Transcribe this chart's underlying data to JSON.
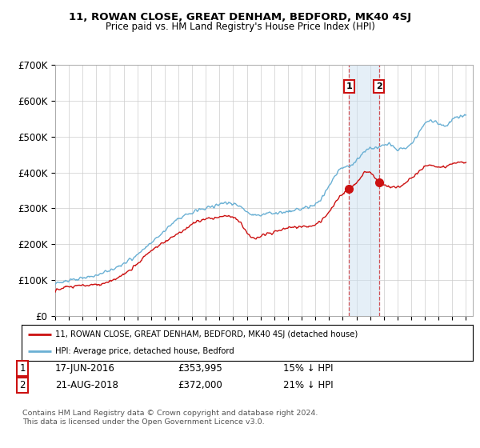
{
  "title": "11, ROWAN CLOSE, GREAT DENHAM, BEDFORD, MK40 4SJ",
  "subtitle": "Price paid vs. HM Land Registry's House Price Index (HPI)",
  "ylabel_ticks": [
    "£0",
    "£100K",
    "£200K",
    "£300K",
    "£400K",
    "£500K",
    "£600K",
    "£700K"
  ],
  "ytick_values": [
    0,
    100000,
    200000,
    300000,
    400000,
    500000,
    600000,
    700000
  ],
  "ylim": [
    0,
    700000
  ],
  "xlim_start": 1995.0,
  "xlim_end": 2025.5,
  "hpi_color": "#6ab0d4",
  "price_color": "#cc1111",
  "transaction1_date": 2016.46,
  "transaction1_price": 353995,
  "transaction2_date": 2018.64,
  "transaction2_price": 372000,
  "legend_line1": "11, ROWAN CLOSE, GREAT DENHAM, BEDFORD, MK40 4SJ (detached house)",
  "legend_line2": "HPI: Average price, detached house, Bedford",
  "table_row1": [
    "1",
    "17-JUN-2016",
    "£353,995",
    "15% ↓ HPI"
  ],
  "table_row2": [
    "2",
    "21-AUG-2018",
    "£372,000",
    "21% ↓ HPI"
  ],
  "footnote": "Contains HM Land Registry data © Crown copyright and database right 2024.\nThis data is licensed under the Open Government Licence v3.0.",
  "background_color": "#ffffff",
  "grid_color": "#cccccc",
  "vline_color": "#cc1111"
}
